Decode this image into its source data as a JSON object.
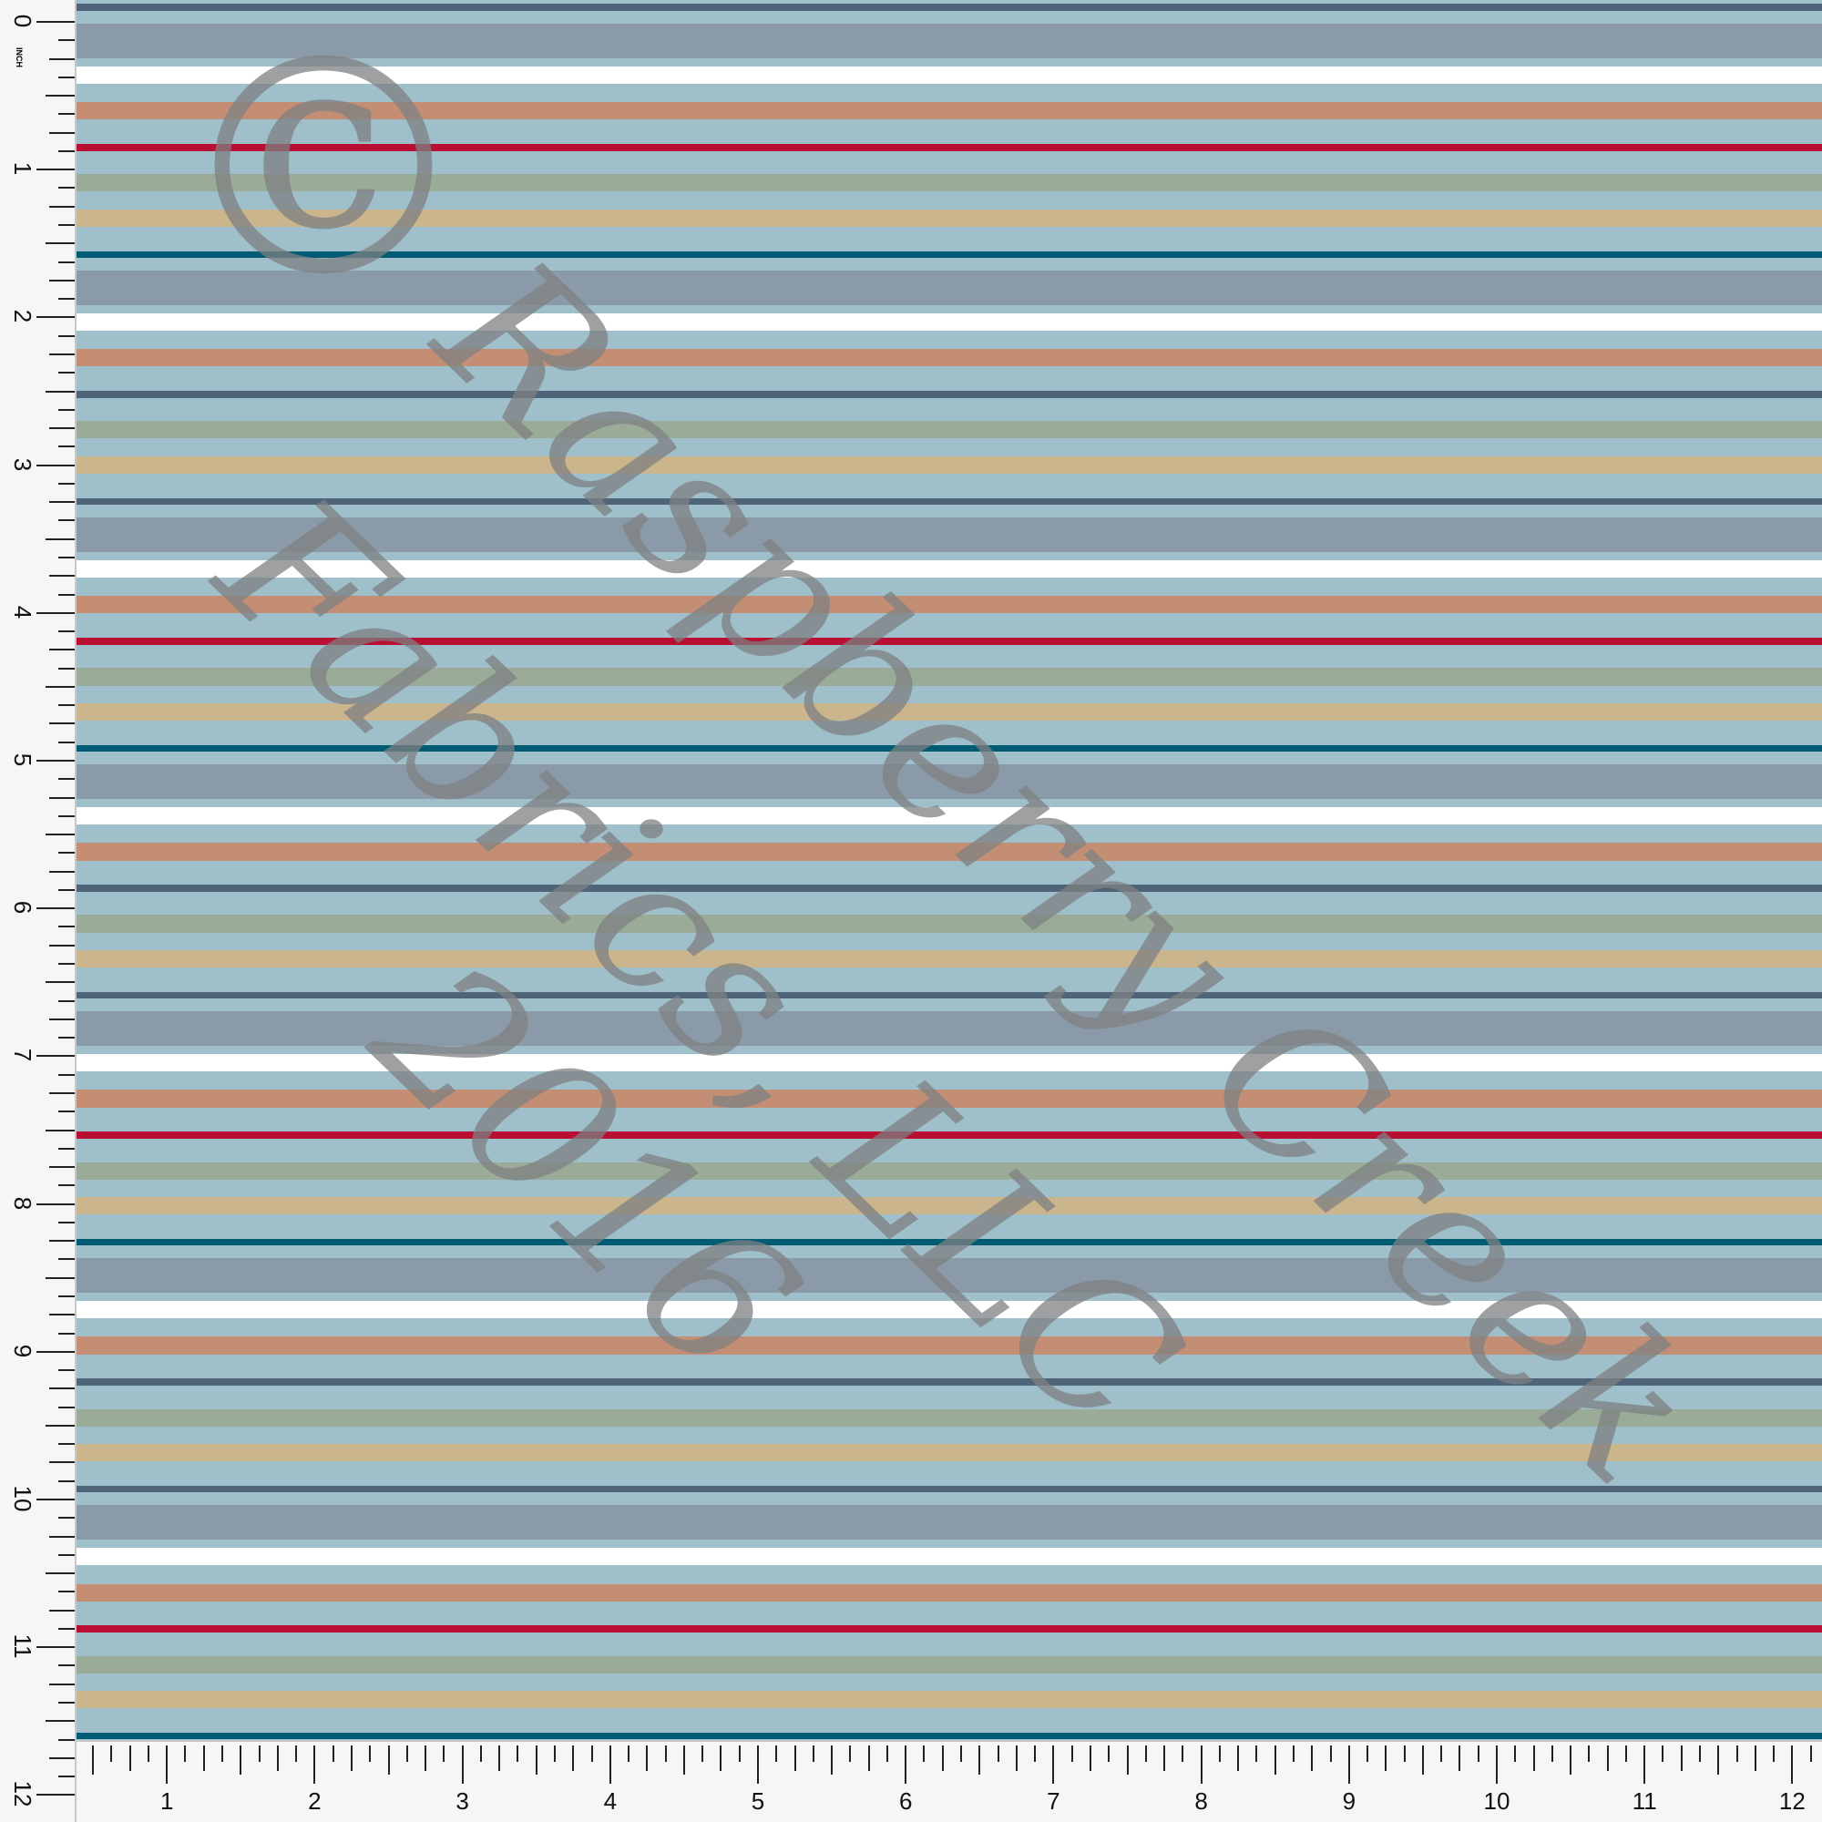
{
  "ruler": {
    "unit": "INCH",
    "vertical_labels": [
      "0",
      "1",
      "2",
      "3",
      "4",
      "5",
      "6",
      "7",
      "8",
      "9",
      "10",
      "11",
      "12"
    ],
    "horizontal_labels": [
      "1",
      "2",
      "3",
      "4",
      "5",
      "6",
      "7",
      "8",
      "9",
      "10",
      "11",
      "12"
    ]
  },
  "pattern": {
    "background": "#9fc0cb",
    "colors": {
      "grey_blue": "#8a9aa8",
      "white": "#ffffff",
      "terracotta": "#c48e74",
      "red": "#b80f33",
      "slate": "#4f6479",
      "sage": "#9aab97",
      "tan": "#cbb58c",
      "teal": "#005c74"
    },
    "half_repeat_a": [
      "grey_blue",
      "white",
      "terracotta",
      "red",
      "sage",
      "tan",
      "teal"
    ],
    "half_repeat_b": [
      "grey_blue",
      "white",
      "terracotta",
      "slate",
      "sage",
      "tan",
      "slate"
    ]
  },
  "watermark": {
    "symbol": "©",
    "line1": "Raspberry Creek",
    "line2": "Fabrics, LLC",
    "line3": "2016"
  }
}
